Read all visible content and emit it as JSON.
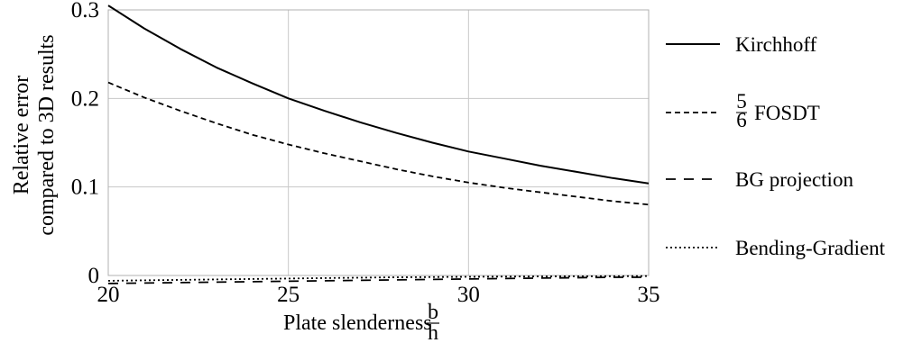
{
  "chart_data": {
    "type": "line",
    "xlabel": "Plate slenderness",
    "xlabel_fraction": {
      "numerator": "b",
      "denominator": "h"
    },
    "ylabel_lines": [
      "Relative error",
      "compared to 3D results"
    ],
    "xlim": [
      20,
      35
    ],
    "ylim": [
      0,
      0.3
    ],
    "xticks": [
      20,
      25,
      30,
      35
    ],
    "xtick_labels": [
      "20",
      "25",
      "30",
      "35"
    ],
    "yticks": [
      0,
      0.1,
      0.2,
      0.3
    ],
    "ytick_labels": [
      "0",
      "0.1",
      "0.2",
      "0.3"
    ],
    "grid": true,
    "legend_position": "right",
    "series": [
      {
        "name": "Kirchhoff",
        "style": "solid",
        "x": [
          20,
          21,
          22,
          23,
          24,
          25,
          26,
          27,
          28,
          29,
          30,
          31,
          32,
          33,
          34,
          35
        ],
        "y": [
          0.305,
          0.279,
          0.256,
          0.235,
          0.217,
          0.2,
          0.186,
          0.173,
          0.161,
          0.15,
          0.14,
          0.132,
          0.124,
          0.117,
          0.11,
          0.104
        ]
      },
      {
        "name": "FOSDT",
        "name_prefix": {
          "numerator": "5",
          "denominator": "6"
        },
        "style": "dashed",
        "x": [
          20,
          21,
          22,
          23,
          24,
          25,
          26,
          27,
          28,
          29,
          30,
          31,
          32,
          33,
          34,
          35
        ],
        "y": [
          0.218,
          0.201,
          0.186,
          0.172,
          0.159,
          0.148,
          0.138,
          0.129,
          0.12,
          0.112,
          0.105,
          0.099,
          0.094,
          0.089,
          0.084,
          0.08
        ]
      },
      {
        "name": "BG projection",
        "style": "long-dashed",
        "x": [
          20,
          22,
          24,
          26,
          28,
          30,
          32,
          34,
          35
        ],
        "y": [
          -0.009,
          -0.008,
          -0.007,
          -0.006,
          -0.005,
          -0.004,
          -0.003,
          -0.002,
          -0.002
        ]
      },
      {
        "name": "Bending-Gradient",
        "style": "dotted",
        "x": [
          20,
          22,
          24,
          26,
          28,
          30,
          32,
          34,
          35
        ],
        "y": [
          -0.006,
          -0.005,
          -0.004,
          -0.003,
          -0.002,
          -0.0015,
          -0.001,
          -0.0008,
          -0.0006
        ]
      }
    ]
  }
}
